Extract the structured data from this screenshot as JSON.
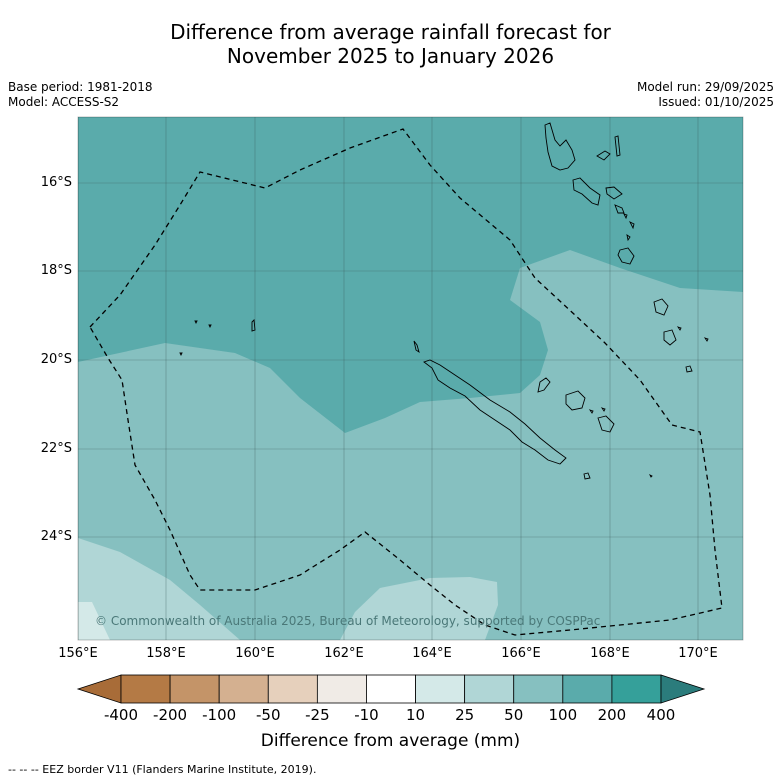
{
  "title": {
    "line1": "Difference from average rainfall forecast for",
    "line2": "November 2025 to January 2026"
  },
  "meta_left": {
    "base_period": "Base period: 1981-2018",
    "model": "Model: ACCESS-S2"
  },
  "meta_right": {
    "model_run": "Model run: 29/09/2025",
    "issued": "Issued: 01/10/2025"
  },
  "map": {
    "latitude_labels": [
      "16°S",
      "18°S",
      "20°S",
      "22°S",
      "24°S"
    ],
    "longitude_labels": [
      "156°E",
      "158°E",
      "160°E",
      "162°E",
      "164°E",
      "166°E",
      "168°E",
      "170°E"
    ],
    "copyright": "© Commonwealth of Australia 2025, Bureau of Meteorology, supported by COSPPac",
    "colors": {
      "c100_200": "#5aabab",
      "c50_100": "#86c0c0",
      "c25_50": "#b0d6d6"
    }
  },
  "colorbar": {
    "labels": [
      "-400",
      "-200",
      "-100",
      "-50",
      "-25",
      "-10",
      "10",
      "25",
      "50",
      "100",
      "200",
      "400"
    ],
    "colors": [
      "#a86c38",
      "#b47a45",
      "#c49468",
      "#d4b090",
      "#e6d0bc",
      "#f0ebe6",
      "#ffffff",
      "#d4e9e8",
      "#b0d6d6",
      "#86c0c0",
      "#5aabab",
      "#35a09a",
      "#2b7c7c"
    ],
    "title": "Difference from average (mm)"
  },
  "footer": "--  --  -- EEZ border V11 (Flanders Marine Institute, 2019)."
}
